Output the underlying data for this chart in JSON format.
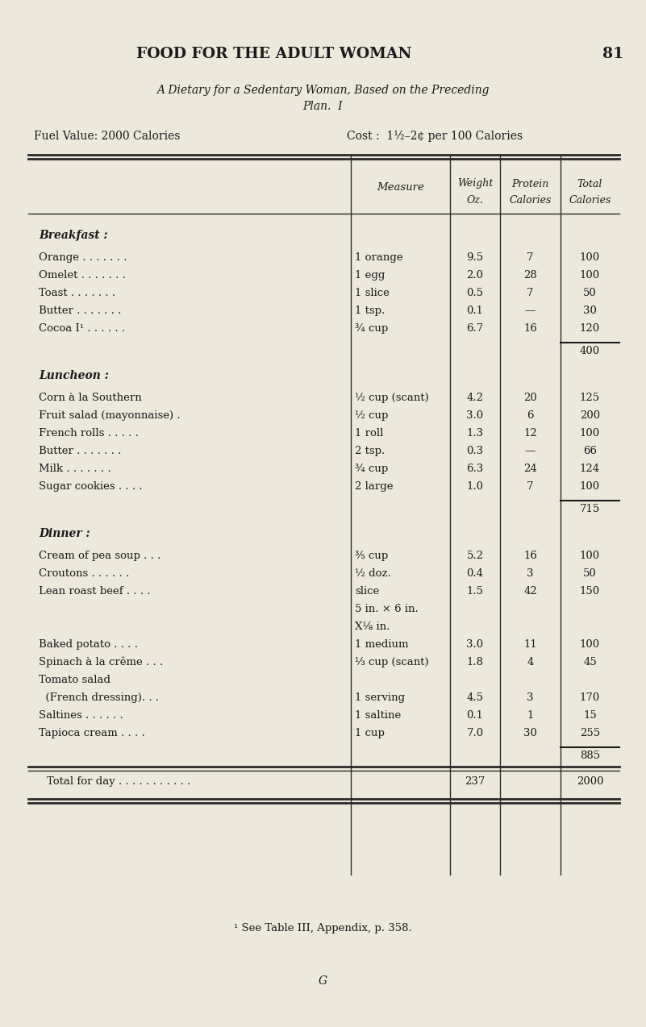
{
  "page_header": "FOOD FOR THE ADULT WOMAN",
  "page_number": "81",
  "subtitle_line1": "A Dietary for a Sedentary Woman, Based on the Preceding",
  "subtitle_line2": "Plan.  I",
  "fuel_value": "Fuel Value: 2000 Calories",
  "cost": "Cost :  1½–2¢ per 100 Calories",
  "bg_color": "#EDE8DC",
  "text_color": "#1a1a1a",
  "footnote": "¹ See Table III, Appendix, p. 358.",
  "footer_letter": "G",
  "col_header_measure": "Measure",
  "col_header_weight1": "Weight",
  "col_header_weight2": "Oz.",
  "col_header_protein1": "Protein",
  "col_header_protein2": "Calories",
  "col_header_total1": "Total",
  "col_header_total2": "Calories"
}
